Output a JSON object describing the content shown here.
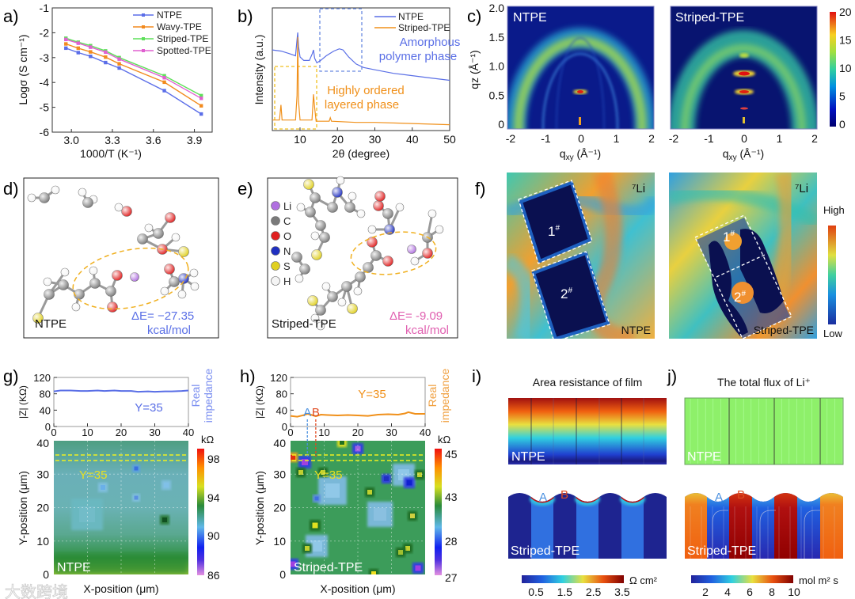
{
  "panel_labels": {
    "a": "a)",
    "b": "b)",
    "c": "c)",
    "d": "d)",
    "e": "e)",
    "f": "f)",
    "g": "g)",
    "h": "h)",
    "i": "i)",
    "j": "j)"
  },
  "watermark": "大数跨境",
  "chart_data": [
    {
      "id": "a",
      "type": "line",
      "title": "",
      "xlabel": "1000/T (K⁻¹)",
      "ylabel": "Logσ (S cm⁻¹)",
      "xlim": [
        2.86,
        4.03
      ],
      "ylim": [
        -6,
        -1
      ],
      "xticks": [
        3.0,
        3.3,
        3.6,
        3.9
      ],
      "xtick_labels": [
        "3.0",
        "3.3",
        "3.6",
        "3.9"
      ],
      "yticks": [
        -1,
        -2,
        -3,
        -4,
        -5,
        -6
      ],
      "ytick_labels": [
        "-1",
        "-2",
        "-3",
        "-4",
        "-5",
        "-6"
      ],
      "legend": "top-right",
      "x": [
        2.96,
        3.05,
        3.14,
        3.25,
        3.35,
        3.68,
        3.95
      ],
      "series": [
        {
          "name": "NTPE",
          "color": "#5b6ee8",
          "values": [
            -2.62,
            -2.8,
            -2.95,
            -3.2,
            -3.42,
            -4.33,
            -5.27
          ]
        },
        {
          "name": "Wavy-TPE",
          "color": "#f28a1e",
          "values": [
            -2.45,
            -2.62,
            -2.77,
            -2.98,
            -3.25,
            -3.99,
            -4.94
          ]
        },
        {
          "name": "Striped-TPE",
          "color": "#5ee05a",
          "values": [
            -2.22,
            -2.38,
            -2.52,
            -2.73,
            -3.0,
            -3.73,
            -4.53
          ]
        },
        {
          "name": "Spotted-TPE",
          "color": "#e060d0",
          "values": [
            -2.27,
            -2.42,
            -2.58,
            -2.78,
            -3.06,
            -3.81,
            -4.64
          ]
        }
      ]
    },
    {
      "id": "b",
      "type": "line",
      "title": "",
      "xlabel": "2θ (degree)",
      "ylabel": "Intensity (a.u.)",
      "xlim": [
        2.6,
        50
      ],
      "ylim": [
        0,
        1.05
      ],
      "xticks": [
        10,
        20,
        30,
        40,
        50
      ],
      "xtick_labels": [
        "10",
        "20",
        "30",
        "40",
        "50"
      ],
      "legend": "top-right",
      "annotations": [
        {
          "text": [
            "Amorphous",
            "polymer phase"
          ],
          "color": "#5a6fe6"
        },
        {
          "text": [
            "Highly ordered",
            "layered phase"
          ],
          "color": "#f0901a"
        }
      ],
      "series": [
        {
          "name": "NTPE",
          "color": "#5a6fe6",
          "x": [
            2.6,
            5,
            7,
            8.8,
            9.2,
            9.4,
            9.6,
            10,
            11,
            12.5,
            13.3,
            13.6,
            13.9,
            14.5,
            15.5,
            17,
            19,
            20.5,
            21.5,
            23,
            25,
            27,
            30,
            35,
            40,
            45,
            50
          ],
          "values": [
            0.69,
            0.68,
            0.66,
            0.64,
            0.78,
            0.84,
            0.72,
            0.63,
            0.6,
            0.6,
            0.66,
            0.69,
            0.62,
            0.58,
            0.6,
            0.64,
            0.68,
            0.7,
            0.69,
            0.63,
            0.57,
            0.54,
            0.52,
            0.49,
            0.47,
            0.45,
            0.43
          ]
        },
        {
          "name": "Striped-TPE",
          "color": "#f0901a",
          "x": [
            2.6,
            4.5,
            4.9,
            5.2,
            5.6,
            8.8,
            9.2,
            9.4,
            9.6,
            10,
            13.2,
            13.6,
            13.9,
            14.3,
            17.8,
            18.1,
            18.4,
            25,
            30,
            40,
            50
          ],
          "values": [
            0.09,
            0.09,
            0.22,
            0.09,
            0.09,
            0.09,
            0.3,
            0.8,
            0.25,
            0.09,
            0.09,
            0.31,
            0.2,
            0.08,
            0.08,
            0.11,
            0.08,
            0.07,
            0.07,
            0.06,
            0.05
          ]
        }
      ]
    },
    {
      "id": "g-top",
      "type": "line",
      "xlabel": "",
      "ylabel": "|Z| (KΩ)",
      "xlim": [
        0,
        40
      ],
      "ylim": [
        0,
        120
      ],
      "xticks": [
        0,
        10,
        20,
        30,
        40
      ],
      "xtick_labels": [
        "0",
        "10",
        "20",
        "30",
        "40"
      ],
      "yticks": [
        120,
        80,
        40,
        0
      ],
      "ytick_labels": [
        "120",
        "80",
        "40",
        "0"
      ],
      "annotation": "Y=35",
      "right_label": [
        "Real",
        "impedance"
      ],
      "series": [
        {
          "name": "Real impedance",
          "color": "#5a6fe6",
          "x": [
            0,
            2,
            5,
            8,
            10,
            13,
            15,
            18,
            20,
            23,
            25,
            28,
            30,
            33,
            35,
            38,
            40
          ],
          "values": [
            86,
            88,
            88,
            87,
            87,
            88,
            87,
            88,
            87,
            87,
            85,
            86,
            85,
            86,
            86,
            87,
            88
          ]
        }
      ]
    },
    {
      "id": "h-top",
      "type": "line",
      "xlabel": "",
      "ylabel": "|Z| (KΩ)",
      "xlim": [
        0,
        40
      ],
      "ylim": [
        0,
        120
      ],
      "xticks": [
        0,
        10,
        20,
        30,
        40
      ],
      "xtick_labels": [
        "0",
        "10",
        "20",
        "30",
        "40"
      ],
      "yticks": [
        120,
        80,
        40,
        0
      ],
      "ytick_labels": [
        "120",
        "80",
        "40",
        "0"
      ],
      "annotation": "Y=35",
      "markers": [
        {
          "label": "A",
          "x": 5,
          "color": "#4a90e0"
        },
        {
          "label": "B",
          "x": 7.5,
          "color": "#e04a20"
        }
      ],
      "right_label": [
        "Real",
        "impedance"
      ],
      "series": [
        {
          "name": "Real impedance",
          "color": "#f0901a",
          "x": [
            0,
            2,
            4,
            5,
            6,
            7.5,
            9,
            11,
            14,
            17,
            20,
            23,
            26,
            29,
            32,
            34,
            35,
            37,
            40
          ],
          "values": [
            26,
            24,
            28,
            31,
            29,
            25,
            29,
            28,
            27,
            28,
            27,
            26,
            29,
            30,
            29,
            32,
            35,
            31,
            31
          ]
        }
      ]
    }
  ],
  "panel_c": {
    "maps": [
      {
        "title": "NTPE"
      },
      {
        "title": "Striped-TPE"
      }
    ],
    "ylabel": "qz (Å⁻¹)",
    "ylabel_main": "q",
    "ylabel_sub": "z",
    "ylabel_unit": " (Å⁻¹)",
    "xlabel_main": "q",
    "xlabel_sub": "xy",
    "xlabel_unit": " (Å⁻¹)",
    "yticks": [
      "2.0",
      "1.5",
      "1.0",
      "0.5",
      "0"
    ],
    "xticks": [
      "-2",
      "-1",
      "0",
      "1",
      "2"
    ],
    "colorbar_ticks": [
      "20",
      "15",
      "10",
      "5",
      "0"
    ]
  },
  "panel_d": {
    "name": "NTPE",
    "energy": "ΔE= −27.35",
    "unit": "kcal/mol",
    "color": "#5a6fe6"
  },
  "panel_e": {
    "name": "Striped-TPE",
    "energy": "ΔE= -9.09",
    "unit": "kcal/mol",
    "color": "#e060b0",
    "legend": [
      {
        "symbol": "Li",
        "color": "#b070e0"
      },
      {
        "symbol": "C",
        "color": "#7a7a7a"
      },
      {
        "symbol": "O",
        "color": "#e02020"
      },
      {
        "symbol": "N",
        "color": "#2030c0"
      },
      {
        "symbol": "S",
        "color": "#e0d020"
      },
      {
        "symbol": "H",
        "color": "#f4f4f4"
      }
    ]
  },
  "panel_f": {
    "isotope": "⁷Li",
    "maps": [
      {
        "name": "NTPE",
        "regions": [
          "1",
          "2"
        ]
      },
      {
        "name": "Striped-TPE",
        "regions": [
          "1",
          "2"
        ]
      }
    ],
    "region_mark": "#",
    "scale_high": "High",
    "scale_low": "Low"
  },
  "panel_g": {
    "map_label": "NTPE",
    "ylabel": "Y-position (μm)",
    "xlabel": "X-position (μm)",
    "yticks": [
      "40",
      "30",
      "20",
      "10",
      "0"
    ],
    "line_label": "Y=35",
    "colorbar_unit": "kΩ",
    "colorbar_ticks": [
      "98",
      "94",
      "90",
      "86"
    ]
  },
  "panel_h": {
    "map_label": "Striped-TPE",
    "ylabel": "Y-position (μm)",
    "xlabel": "X-position (μm)",
    "yticks": [
      "40",
      "30",
      "20",
      "10",
      "0"
    ],
    "line_label": "Y=35",
    "colorbar_unit": "kΩ",
    "colorbar_ticks": [
      "45",
      "43",
      "28",
      "27"
    ]
  },
  "panel_i": {
    "title": "Area resistance of film",
    "top_label": "NTPE",
    "bottom_label": "Striped-TPE",
    "point_a": "A",
    "point_b": "B",
    "colorbar_unit": "Ω cm²",
    "colorbar_ticks": [
      "0.5",
      "1.5",
      "2.5",
      "3.5"
    ]
  },
  "panel_j": {
    "title": "The total flux of Li⁺",
    "top_label": "NTPE",
    "bottom_label": "Striped-TPE",
    "point_a": "A",
    "point_b": "B",
    "colorbar_unit": "mol m² s",
    "colorbar_ticks": [
      "2",
      "4",
      "6",
      "8",
      "10"
    ]
  }
}
